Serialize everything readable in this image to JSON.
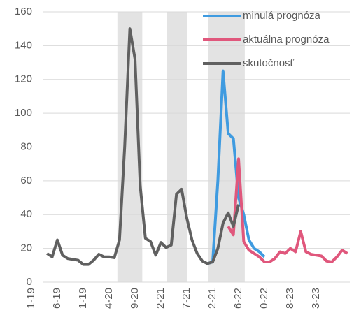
{
  "chart_data": {
    "type": "line",
    "categories": [
      "1-19",
      null,
      null,
      null,
      null,
      "6-19",
      null,
      null,
      null,
      null,
      "1-19",
      null,
      null,
      null,
      null,
      "4-20",
      null,
      null,
      null,
      null,
      "9-20",
      null,
      null,
      null,
      null,
      "2-21",
      null,
      null,
      null,
      null,
      "7-21",
      null,
      null,
      null,
      null,
      "2-21",
      null,
      null,
      null,
      null,
      "6-22",
      null,
      null,
      null,
      null,
      "0-22",
      null,
      null,
      null,
      null,
      "8-23",
      null,
      null,
      null,
      null,
      "3-23",
      null,
      null,
      null,
      null,
      null,
      null
    ],
    "series": [
      {
        "name": "minulá prognóza",
        "color": "#3f9be0",
        "values": [
          null,
          null,
          null,
          null,
          null,
          null,
          null,
          null,
          null,
          null,
          null,
          null,
          null,
          null,
          null,
          null,
          null,
          null,
          null,
          null,
          null,
          null,
          null,
          null,
          null,
          null,
          null,
          null,
          null,
          null,
          null,
          null,
          null,
          null,
          11,
          12,
          60,
          125,
          88,
          85,
          50,
          40,
          25,
          20,
          18,
          15,
          null,
          null,
          null,
          null,
          null,
          null,
          null,
          null,
          null,
          null,
          null,
          null,
          null,
          null,
          null,
          null
        ]
      },
      {
        "name": "aktuálna prognóza",
        "color": "#e0577c",
        "values": [
          null,
          null,
          null,
          null,
          null,
          null,
          null,
          null,
          null,
          null,
          null,
          null,
          null,
          null,
          null,
          null,
          null,
          null,
          null,
          null,
          null,
          null,
          null,
          null,
          null,
          null,
          null,
          null,
          null,
          null,
          null,
          null,
          null,
          null,
          null,
          null,
          null,
          null,
          33,
          28,
          73,
          24,
          19,
          17,
          15,
          12,
          12,
          14,
          18,
          17,
          20,
          18,
          30,
          18,
          16.5,
          16,
          15.5,
          12.5,
          12,
          15,
          19,
          17
        ]
      },
      {
        "name": "skutočnosť",
        "color": "#606060",
        "values": [
          null,
          null,
          null,
          17,
          15,
          25,
          16,
          14,
          13.5,
          13,
          10.5,
          10.5,
          13,
          16.5,
          15,
          15,
          14.5,
          25,
          80,
          150,
          132,
          57,
          26,
          24,
          16,
          23.5,
          20.5,
          22,
          52,
          55,
          38,
          25,
          17,
          12.5,
          11,
          12,
          20,
          35,
          41,
          33,
          46,
          null,
          null,
          null,
          null,
          null,
          null,
          null,
          null,
          null,
          null,
          null,
          null,
          null,
          null,
          null,
          null,
          null,
          null,
          null,
          null,
          null
        ]
      }
    ],
    "shaded_bands": [
      [
        16.6,
        21.4
      ],
      [
        26.1,
        30.1
      ],
      [
        34.1,
        41.2
      ]
    ],
    "ylim": [
      0,
      160
    ],
    "yticks": [
      0,
      20,
      40,
      60,
      80,
      100,
      120,
      140,
      160
    ],
    "grid": true,
    "legend": "top-right"
  }
}
